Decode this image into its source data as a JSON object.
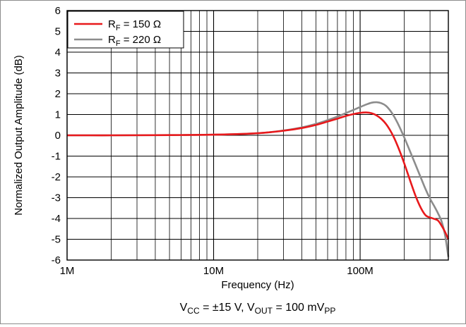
{
  "chart_data": {
    "type": "line",
    "x_scale": "log",
    "xlim": [
      1000000,
      400000000
    ],
    "ylim": [
      -6,
      6
    ],
    "xlabel": "Frequency (Hz)",
    "ylabel": "Normalized Output Amplitude (dB)",
    "x_tick_values": [
      1000000,
      10000000,
      100000000
    ],
    "x_tick_labels": [
      "1M",
      "10M",
      "100M"
    ],
    "y_tick_values": [
      -6,
      -5,
      -4,
      -3,
      -2,
      -1,
      0,
      1,
      2,
      3,
      4,
      5,
      6
    ],
    "y_tick_labels": [
      "-6",
      "-5",
      "-4",
      "-3",
      "-2",
      "-1",
      "0",
      "1",
      "2",
      "3",
      "4",
      "5",
      "6"
    ],
    "grid": true,
    "legend_position": "top-left",
    "legend": [
      {
        "prefix": "R",
        "sub": "F",
        "suffix": " = 150 Ω"
      },
      {
        "prefix": "R",
        "sub": "F",
        "suffix": " = 220 Ω"
      }
    ],
    "caption": {
      "p1": "V",
      "s1": "CC",
      "p2": " = ±15 V, V",
      "s2": "OUT",
      "p3": " = 100 mV",
      "s3": "PP"
    },
    "series": [
      {
        "name": "RF = 150 Ω",
        "color": "#e8191c",
        "points": [
          [
            1000000,
            0.0
          ],
          [
            2000000,
            0.0
          ],
          [
            5000000,
            0.01
          ],
          [
            10000000,
            0.03
          ],
          [
            20000000,
            0.1
          ],
          [
            30000000,
            0.22
          ],
          [
            40000000,
            0.35
          ],
          [
            50000000,
            0.5
          ],
          [
            60000000,
            0.66
          ],
          [
            70000000,
            0.8
          ],
          [
            80000000,
            0.93
          ],
          [
            90000000,
            1.02
          ],
          [
            100000000,
            1.08
          ],
          [
            110000000,
            1.1
          ],
          [
            120000000,
            1.06
          ],
          [
            130000000,
            0.95
          ],
          [
            140000000,
            0.78
          ],
          [
            150000000,
            0.55
          ],
          [
            160000000,
            0.25
          ],
          [
            170000000,
            -0.1
          ],
          [
            180000000,
            -0.5
          ],
          [
            190000000,
            -0.92
          ],
          [
            200000000,
            -1.35
          ],
          [
            220000000,
            -2.2
          ],
          [
            240000000,
            -2.95
          ],
          [
            260000000,
            -3.5
          ],
          [
            280000000,
            -3.85
          ],
          [
            300000000,
            -3.95
          ],
          [
            320000000,
            -4.02
          ],
          [
            340000000,
            -4.1
          ],
          [
            360000000,
            -4.35
          ],
          [
            380000000,
            -4.65
          ],
          [
            400000000,
            -5.0
          ]
        ]
      },
      {
        "name": "RF = 220 Ω",
        "color": "#8c8c8c",
        "points": [
          [
            1000000,
            0.0
          ],
          [
            2000000,
            0.0
          ],
          [
            5000000,
            0.01
          ],
          [
            10000000,
            0.03
          ],
          [
            20000000,
            0.1
          ],
          [
            30000000,
            0.23
          ],
          [
            40000000,
            0.38
          ],
          [
            50000000,
            0.55
          ],
          [
            60000000,
            0.73
          ],
          [
            70000000,
            0.9
          ],
          [
            80000000,
            1.07
          ],
          [
            90000000,
            1.22
          ],
          [
            100000000,
            1.36
          ],
          [
            110000000,
            1.48
          ],
          [
            120000000,
            1.57
          ],
          [
            130000000,
            1.59
          ],
          [
            140000000,
            1.54
          ],
          [
            150000000,
            1.42
          ],
          [
            160000000,
            1.2
          ],
          [
            170000000,
            0.92
          ],
          [
            180000000,
            0.6
          ],
          [
            190000000,
            0.25
          ],
          [
            200000000,
            -0.1
          ],
          [
            220000000,
            -0.8
          ],
          [
            240000000,
            -1.45
          ],
          [
            260000000,
            -2.05
          ],
          [
            280000000,
            -2.6
          ],
          [
            300000000,
            -3.05
          ],
          [
            320000000,
            -3.4
          ],
          [
            340000000,
            -3.75
          ],
          [
            360000000,
            -4.15
          ],
          [
            380000000,
            -4.8
          ],
          [
            400000000,
            -5.85
          ]
        ]
      }
    ]
  }
}
